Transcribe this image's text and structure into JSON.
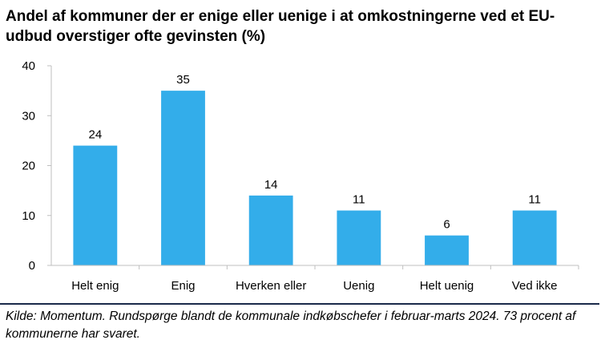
{
  "chart_data": {
    "type": "bar",
    "title": "Andel af kommuner der er enige eller uenige i at omkostningerne ved et EU-udbud overstiger ofte gevinsten (%)",
    "categories": [
      "Helt enig",
      "Enig",
      "Hverken eller",
      "Uenig",
      "Helt uenig",
      "Ved ikke"
    ],
    "values": [
      24,
      35,
      14,
      11,
      6,
      11
    ],
    "ylim": [
      0,
      40
    ],
    "yticks": [
      0,
      10,
      20,
      30,
      40
    ],
    "xlabel": "",
    "ylabel": "",
    "grid": false,
    "bar_color": "#33adea",
    "source": "Kilde: Momentum. Rundspørge blandt de kommunale indkøbschefer i februar-marts 2024. 73 procent af kommunerne har svaret."
  }
}
